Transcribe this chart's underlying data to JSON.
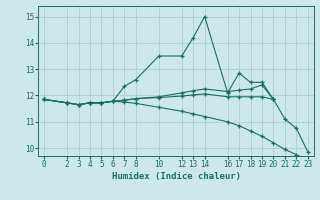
{
  "xlabel": "Humidex (Indice chaleur)",
  "bg_color": "#cce8e8",
  "grid_color": "#aacfcf",
  "line_color": "#1a7060",
  "ylim": [
    9.7,
    15.4
  ],
  "xlim": [
    -0.5,
    23.5
  ],
  "yticks": [
    10,
    11,
    12,
    13,
    14,
    15
  ],
  "xticks": [
    0,
    2,
    3,
    4,
    5,
    6,
    7,
    8,
    10,
    12,
    13,
    14,
    16,
    17,
    18,
    19,
    20,
    21,
    22,
    23
  ],
  "lines": [
    {
      "x": [
        0,
        2,
        3,
        4,
        5,
        6,
        7,
        8,
        10,
        12,
        13,
        14,
        16,
        17,
        18,
        19,
        20,
        21,
        22,
        23
      ],
      "y": [
        11.85,
        11.72,
        11.65,
        11.72,
        11.72,
        11.78,
        12.35,
        12.6,
        13.5,
        13.5,
        14.2,
        15.0,
        12.1,
        12.85,
        12.5,
        12.5,
        11.85,
        11.1,
        10.75,
        9.85
      ]
    },
    {
      "x": [
        0,
        2,
        3,
        4,
        5,
        6,
        7,
        8,
        10,
        12,
        13,
        14,
        16,
        17,
        18,
        19,
        20
      ],
      "y": [
        11.85,
        11.72,
        11.65,
        11.72,
        11.72,
        11.78,
        11.82,
        11.88,
        11.95,
        12.1,
        12.18,
        12.25,
        12.15,
        12.2,
        12.25,
        12.4,
        11.85
      ]
    },
    {
      "x": [
        0,
        2,
        3,
        4,
        5,
        6,
        7,
        8,
        10,
        12,
        13,
        14,
        16,
        17,
        18,
        19,
        20
      ],
      "y": [
        11.85,
        11.72,
        11.65,
        11.72,
        11.72,
        11.78,
        11.82,
        11.88,
        11.92,
        11.98,
        12.02,
        12.06,
        11.95,
        11.95,
        11.95,
        11.95,
        11.85
      ]
    },
    {
      "x": [
        0,
        2,
        3,
        4,
        5,
        6,
        7,
        8,
        10,
        12,
        13,
        14,
        16,
        17,
        18,
        19,
        20,
        21,
        22,
        23
      ],
      "y": [
        11.85,
        11.72,
        11.65,
        11.72,
        11.72,
        11.78,
        11.75,
        11.7,
        11.55,
        11.4,
        11.3,
        11.2,
        11.0,
        10.85,
        10.65,
        10.45,
        10.2,
        9.95,
        9.75,
        9.55
      ]
    }
  ]
}
